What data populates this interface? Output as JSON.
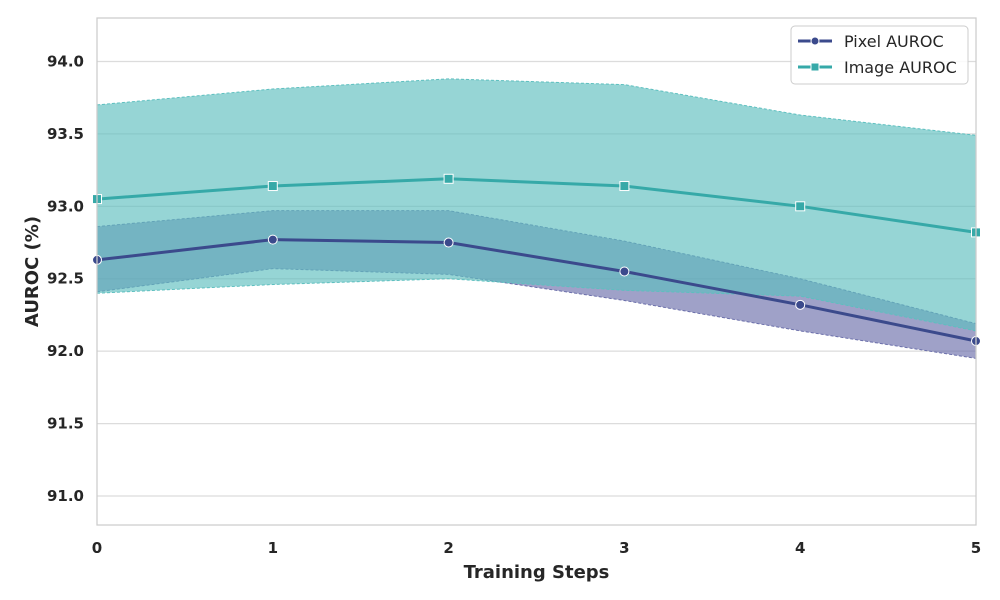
{
  "chart_data": {
    "type": "line",
    "title": "",
    "xlabel": "Training Steps",
    "ylabel": "AUROC (%)",
    "x": [
      0,
      1,
      2,
      3,
      4,
      5
    ],
    "xlim": [
      0,
      5
    ],
    "ylim": [
      90.8,
      94.3
    ],
    "yticks": [
      91.0,
      91.5,
      92.0,
      92.5,
      93.0,
      93.5,
      94.0
    ],
    "ytick_labels": [
      "91.0",
      "91.5",
      "92.0",
      "92.5",
      "93.0",
      "93.5",
      "94.0"
    ],
    "xtick_labels": [
      "0",
      "1",
      "2",
      "3",
      "4",
      "5"
    ],
    "grid": true,
    "legend_position": "top-right",
    "series": [
      {
        "name": "Pixel AUROC",
        "marker": "circle",
        "color": "#3b4a8c",
        "band_color": "#6b6faa",
        "values": [
          92.63,
          92.77,
          92.75,
          92.55,
          92.32,
          92.07
        ],
        "lower": [
          92.41,
          92.57,
          92.53,
          92.35,
          92.14,
          91.95
        ],
        "upper": [
          92.86,
          92.97,
          92.97,
          92.76,
          92.5,
          92.19
        ]
      },
      {
        "name": "Image AUROC",
        "marker": "square",
        "color": "#36a9a8",
        "band_color": "#5dbfbf",
        "values": [
          93.05,
          93.14,
          93.19,
          93.14,
          93.0,
          92.82
        ],
        "lower": [
          92.4,
          92.46,
          92.5,
          92.42,
          92.38,
          92.14
        ],
        "upper": [
          93.7,
          93.81,
          93.88,
          93.84,
          93.63,
          93.49
        ]
      }
    ]
  }
}
